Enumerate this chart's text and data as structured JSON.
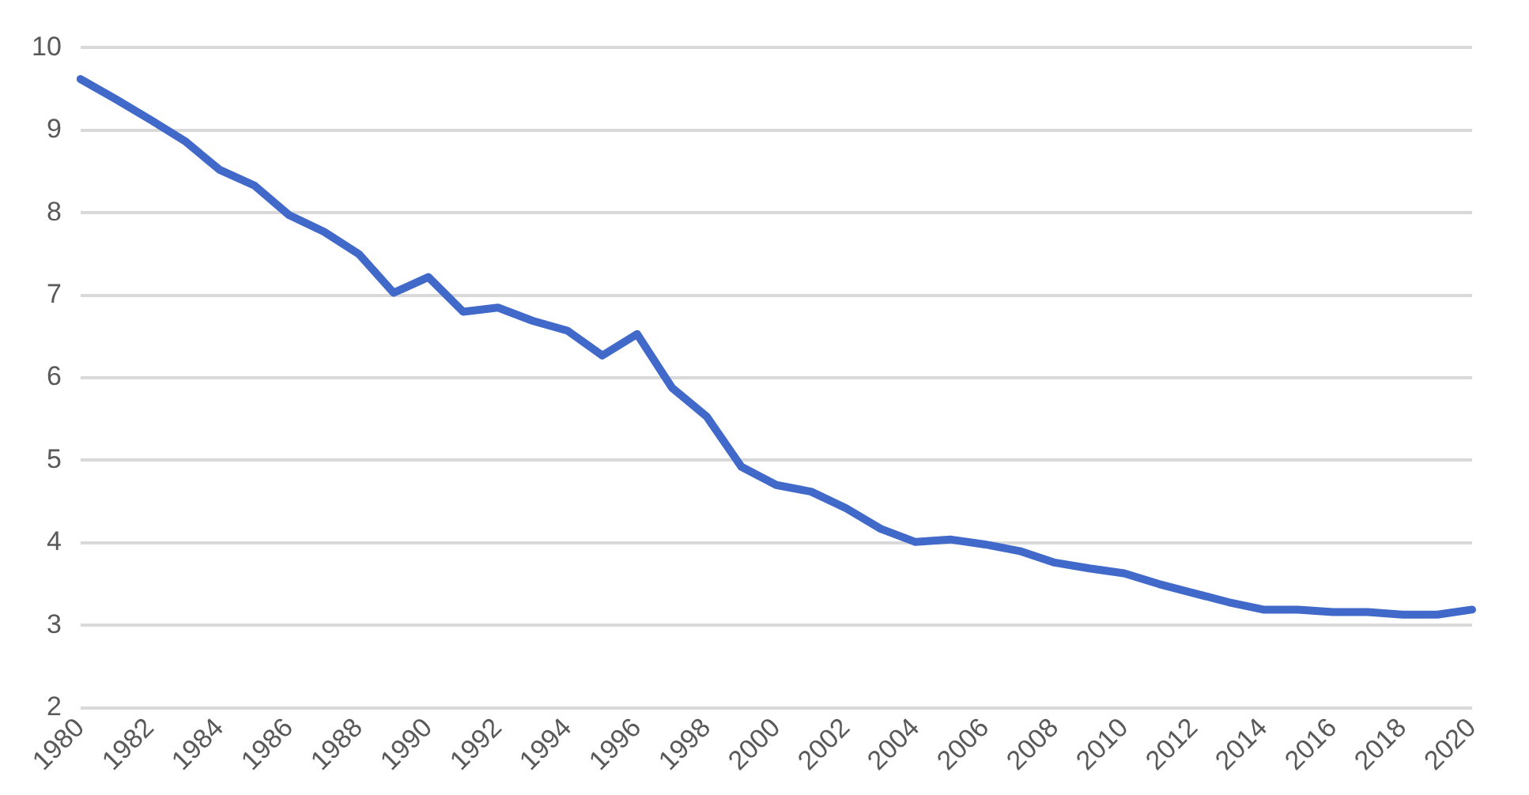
{
  "chart_data": {
    "type": "line",
    "categories": [
      "1980",
      null,
      "1982",
      null,
      "1984",
      null,
      "1986",
      null,
      "1988",
      null,
      "1990",
      null,
      "1992",
      null,
      "1994",
      null,
      "1996",
      null,
      "1998",
      null,
      "2000",
      null,
      "2002",
      null,
      "2004",
      null,
      "2006",
      null,
      "2008",
      null,
      "2010",
      null,
      "2012",
      null,
      "2014",
      null,
      "2016",
      null,
      "2018",
      null,
      "2020"
    ],
    "series": [
      {
        "color": "#4169c9",
        "values": [
          9.62,
          9.38,
          9.13,
          8.87,
          8.52,
          8.33,
          7.97,
          7.77,
          7.5,
          7.03,
          7.22,
          6.8,
          6.85,
          6.69,
          6.57,
          6.27,
          6.53,
          5.88,
          5.53,
          4.92,
          4.7,
          4.62,
          4.42,
          4.17,
          4.01,
          4.04,
          3.98,
          3.9,
          3.76,
          3.69,
          3.63,
          3.5,
          3.39,
          3.28,
          3.19,
          3.19,
          3.16,
          3.16,
          3.13,
          3.13,
          3.19
        ]
      }
    ],
    "ylim": [
      2,
      10
    ],
    "yticks": [
      2,
      3,
      4,
      5,
      6,
      7,
      8,
      9,
      10
    ],
    "grid": "y",
    "legend": false,
    "marker": "none",
    "line_style": "solid"
  }
}
